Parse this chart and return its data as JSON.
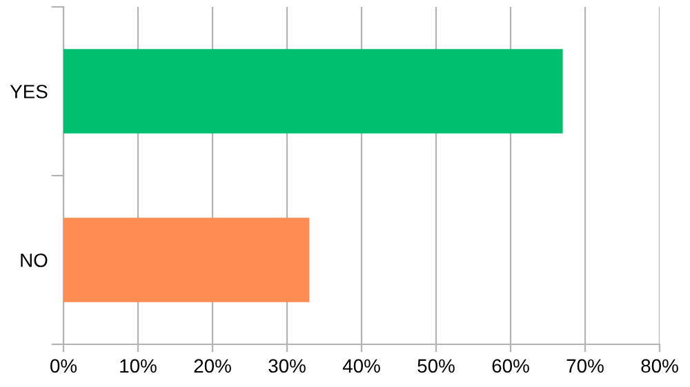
{
  "chart_data": {
    "type": "bar",
    "orientation": "horizontal",
    "categories": [
      "YES",
      "NO"
    ],
    "values": [
      67,
      33
    ],
    "colors": [
      "#00bf6f",
      "#ff8c52"
    ],
    "xlim": [
      0,
      80
    ],
    "xticks": [
      {
        "value": 0,
        "label": "0%"
      },
      {
        "value": 10,
        "label": "10%"
      },
      {
        "value": 20,
        "label": "20%"
      },
      {
        "value": 30,
        "label": "30%"
      },
      {
        "value": 40,
        "label": "40%"
      },
      {
        "value": 50,
        "label": "50%"
      },
      {
        "value": 60,
        "label": "60%"
      },
      {
        "value": 70,
        "label": "70%"
      },
      {
        "value": 80,
        "label": "80%"
      }
    ],
    "grid": "x",
    "legend": false
  }
}
